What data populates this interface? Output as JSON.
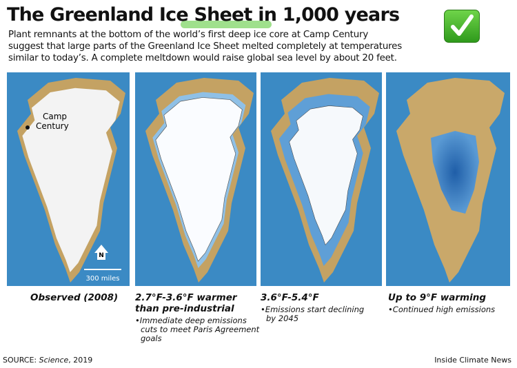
{
  "header": {
    "title": "The Greenland Ice Sheet in 1,000 years",
    "subtitle_lines": [
      "Plant remnants at the bottom of the world’s first deep ice core at Camp Century",
      "suggest that large parts of the Greenland Ice Sheet melted completely at temperatures",
      "similar to today’s. A complete meltdown would raise global sea level by about 20 feet."
    ]
  },
  "map_labels": {
    "place": [
      "Camp",
      "Century"
    ],
    "north": "N",
    "scale": "300 miles"
  },
  "panels": [
    {
      "heading": [
        "Observed (2008)"
      ],
      "note": null
    },
    {
      "heading": [
        "2.7°F-3.6°F warmer",
        "than pre-industrial"
      ],
      "note": [
        "Immediate deep emissions",
        "cuts to meet Paris Agreement",
        "goals"
      ]
    },
    {
      "heading": [
        "3.6°F-5.4°F"
      ],
      "note": [
        "Emissions start declining",
        "by 2045"
      ]
    },
    {
      "heading": [
        "Up to 9°F warming"
      ],
      "note": [
        "Continued high emissions"
      ]
    }
  ],
  "footer": {
    "source_prefix": "SOURCE: ",
    "source_title": "Science",
    "source_suffix": ", 2019",
    "credit": "Inside Climate News"
  }
}
